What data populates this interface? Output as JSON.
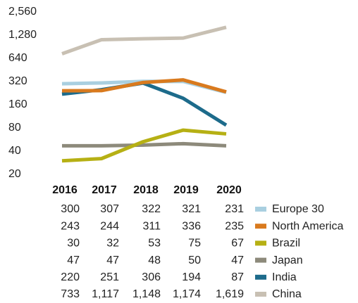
{
  "chart_data": {
    "type": "line",
    "categories": [
      "2016",
      "2017",
      "2018",
      "2019",
      "2020"
    ],
    "log_scale": true,
    "ylim": [
      20,
      2560
    ],
    "yticks": [
      20,
      40,
      80,
      160,
      320,
      640,
      {
        "value": 1280,
        "label": "1,280"
      },
      {
        "value": 2560,
        "label": "2,560"
      }
    ],
    "series": [
      {
        "name": "Europe 30",
        "color": "#a9cfe0",
        "values": [
          300,
          307,
          322,
          321,
          231
        ]
      },
      {
        "name": "North America",
        "color": "#d97a1e",
        "values": [
          243,
          244,
          311,
          336,
          235
        ]
      },
      {
        "name": "Brazil",
        "color": "#b6b014",
        "values": [
          30,
          32,
          53,
          75,
          67
        ]
      },
      {
        "name": "Japan",
        "color": "#8d8a7b",
        "values": [
          47,
          47,
          48,
          50,
          47
        ]
      },
      {
        "name": "India",
        "color": "#1d6b8b",
        "values": [
          220,
          251,
          306,
          194,
          87
        ]
      },
      {
        "name": "China",
        "color": "#c8c0b3",
        "values": [
          733,
          1117,
          1148,
          1174,
          1619
        ],
        "value_labels": [
          "733",
          "1,117",
          "1,148",
          "1,174",
          "1,619"
        ]
      }
    ]
  }
}
